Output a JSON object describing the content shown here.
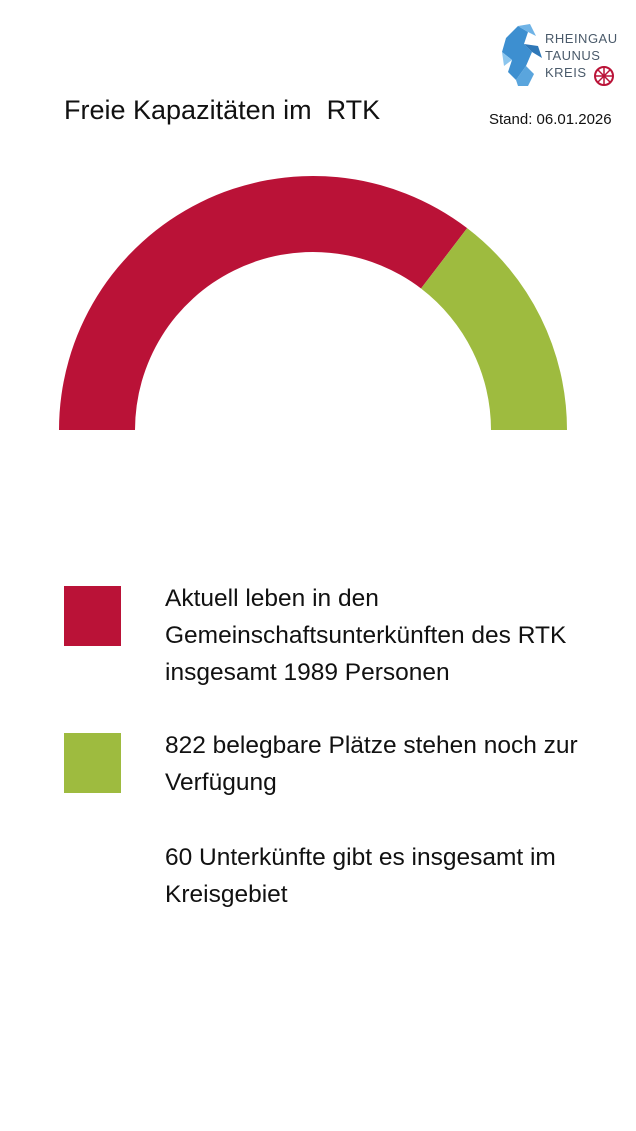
{
  "header": {
    "title": "Freie Kapazitäten im  RTK",
    "stand": "Stand: 06.01.2026",
    "logo_lines": [
      "RHEINGAU",
      "TAUNUS",
      "KREIS"
    ],
    "logo_icon": "lion-icon"
  },
  "colors": {
    "occupied": "#BA1237",
    "free": "#9EBB3F"
  },
  "chart_data": {
    "type": "pie",
    "style": "half-donut",
    "categories": [
      "Aktuell leben in den Gemeinschaftsunterkünften des RTK insgesamt 1989 Personen",
      "822 belegbare Plätze stehen noch zur Verfügung"
    ],
    "values": [
      1989,
      822
    ],
    "colors": [
      "#BA1237",
      "#9EBB3F"
    ],
    "legend": "bottom"
  },
  "legend": {
    "occupied_text": "Aktuell leben in den Gemeinschaftsunterkünften des RTK insgesamt 1989 Personen",
    "free_text": "822 belegbare Plätze stehen noch zur Verfügung",
    "total_text": "60 Unterkünfte gibt es insgesamt im Kreisgebiet"
  }
}
